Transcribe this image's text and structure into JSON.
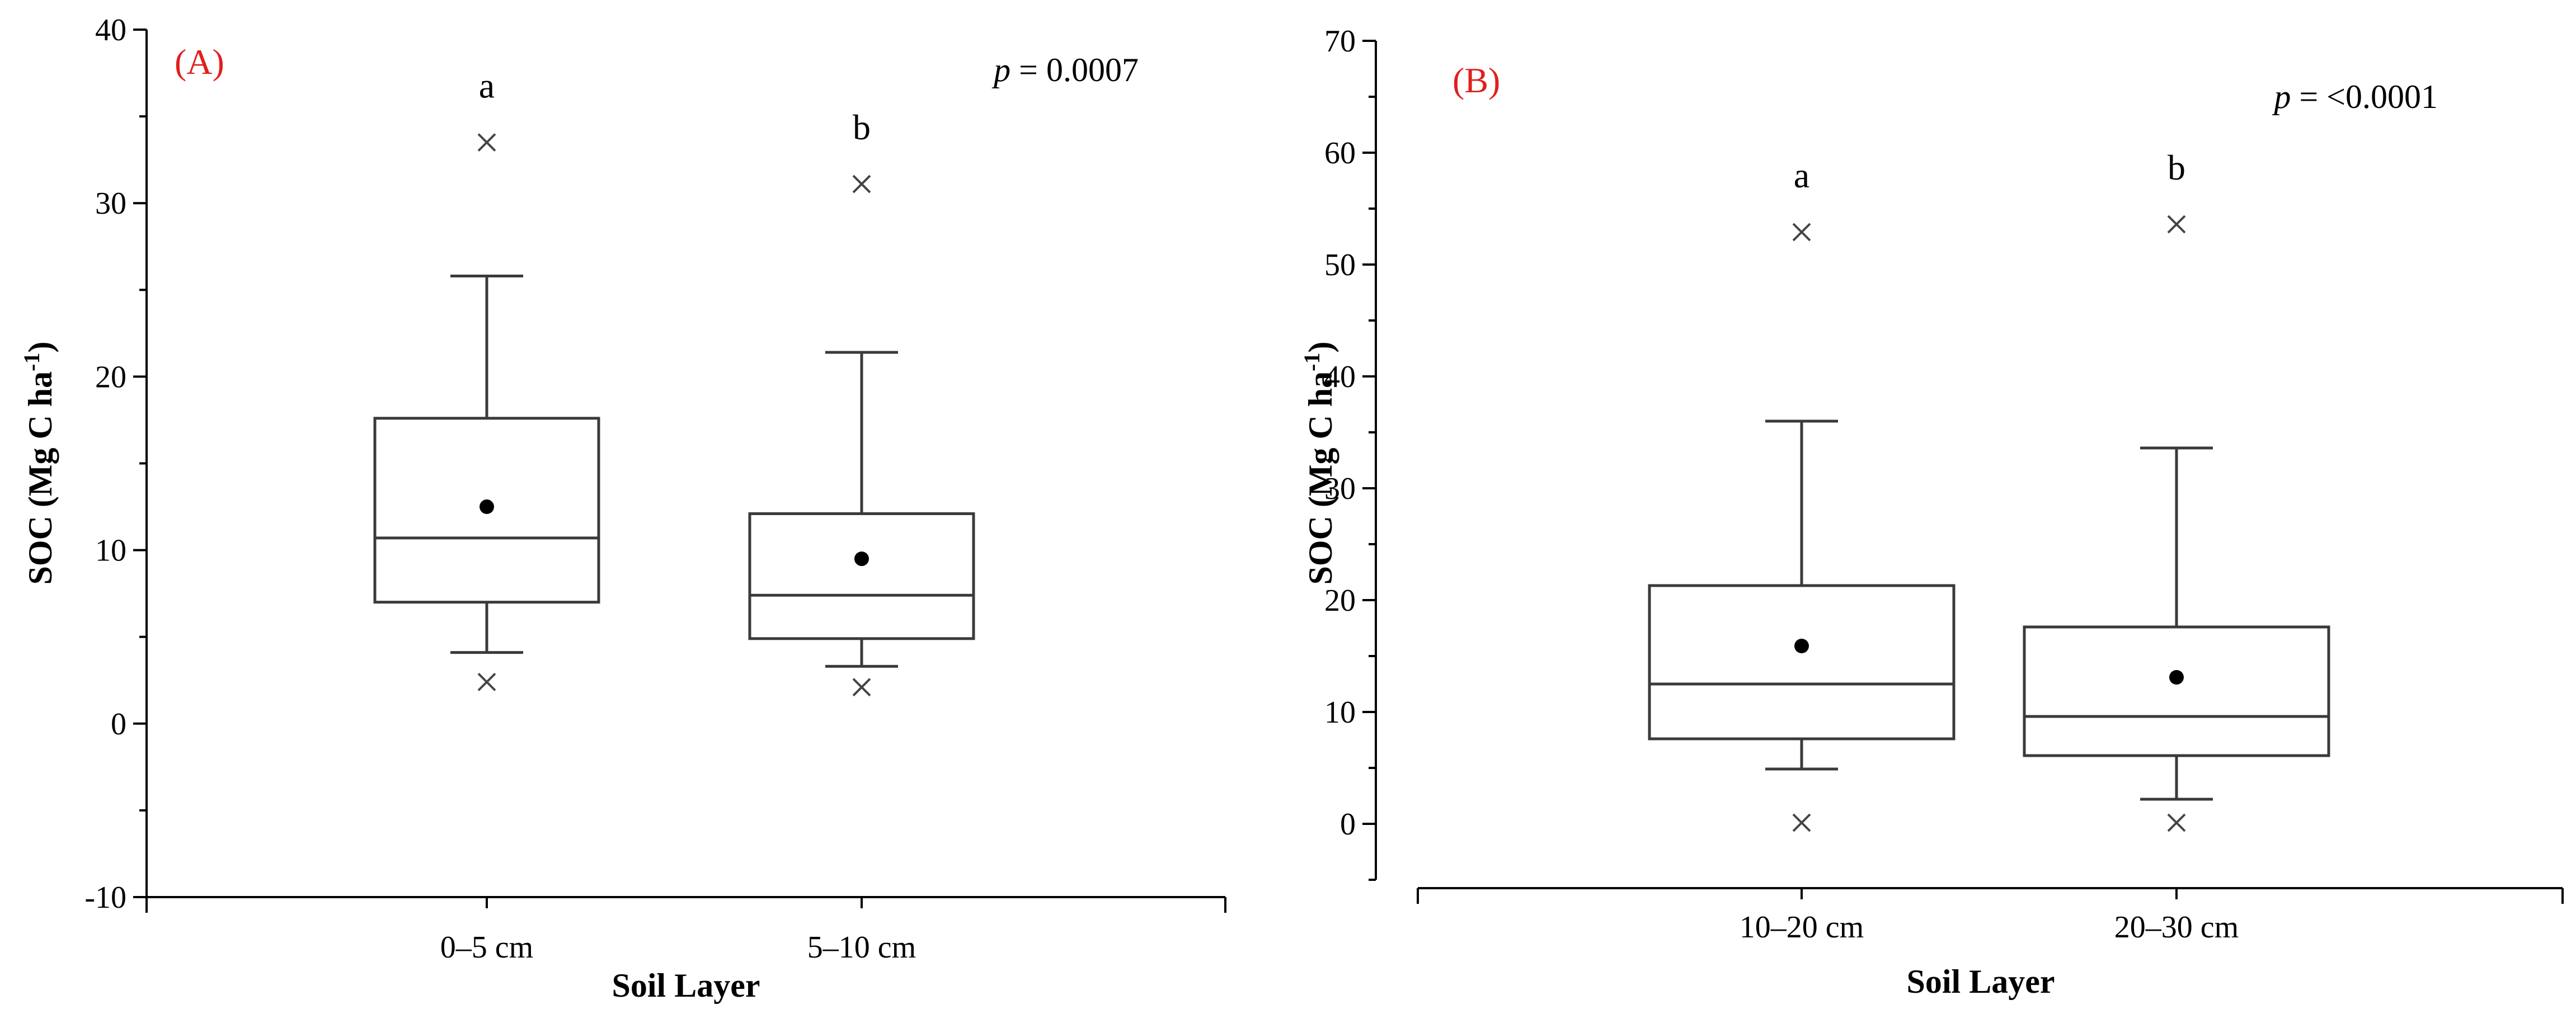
{
  "chart_data": [
    {
      "type": "box",
      "panel_label": "(A)",
      "ylabel_main": "SOC (Mg C ha",
      "ylabel_sup": "-1",
      "ylabel_end": ")",
      "xlabel": "Soil Layer",
      "ylim": [
        -10,
        40
      ],
      "yticks": [
        -10,
        0,
        10,
        20,
        30,
        40
      ],
      "p_symbol": "p",
      "p_text": " = 0.0007",
      "categories": [
        "0–5 cm",
        "5–10 cm"
      ],
      "boxes": [
        {
          "category": "0–5 cm",
          "whisker_low": 4.1,
          "q1": 7.0,
          "median": 10.7,
          "q3": 17.6,
          "whisker_high": 25.8,
          "mean": 12.5,
          "outliers": [
            2.4,
            33.5
          ],
          "letter": "a"
        },
        {
          "category": "5–10 cm",
          "whisker_low": 3.3,
          "q1": 4.9,
          "median": 7.4,
          "q3": 12.1,
          "whisker_high": 21.4,
          "mean": 9.5,
          "outliers": [
            2.1,
            31.1
          ],
          "letter": "b"
        }
      ]
    },
    {
      "type": "box",
      "panel_label": "(B)",
      "ylabel_main": "SOC (Mg C ha",
      "ylabel_sup": "-1",
      "ylabel_end": ")",
      "xlabel": "Soil Layer",
      "ylim": [
        -5,
        70
      ],
      "yticks": [
        0,
        10,
        20,
        30,
        40,
        50,
        60,
        70
      ],
      "p_symbol": "p",
      "p_text": " = <0.0001",
      "categories": [
        "10–20 cm",
        "20–30 cm"
      ],
      "boxes": [
        {
          "category": "10–20 cm",
          "whisker_low": 4.9,
          "q1": 7.6,
          "median": 12.5,
          "q3": 21.3,
          "whisker_high": 36.0,
          "mean": 15.9,
          "outliers": [
            0.1,
            52.9
          ],
          "letter": "a"
        },
        {
          "category": "20–30 cm",
          "whisker_low": 2.2,
          "q1": 6.1,
          "median": 9.6,
          "q3": 17.6,
          "whisker_high": 33.6,
          "mean": 13.1,
          "outliers": [
            0.1,
            53.6
          ],
          "letter": "b"
        }
      ]
    }
  ]
}
